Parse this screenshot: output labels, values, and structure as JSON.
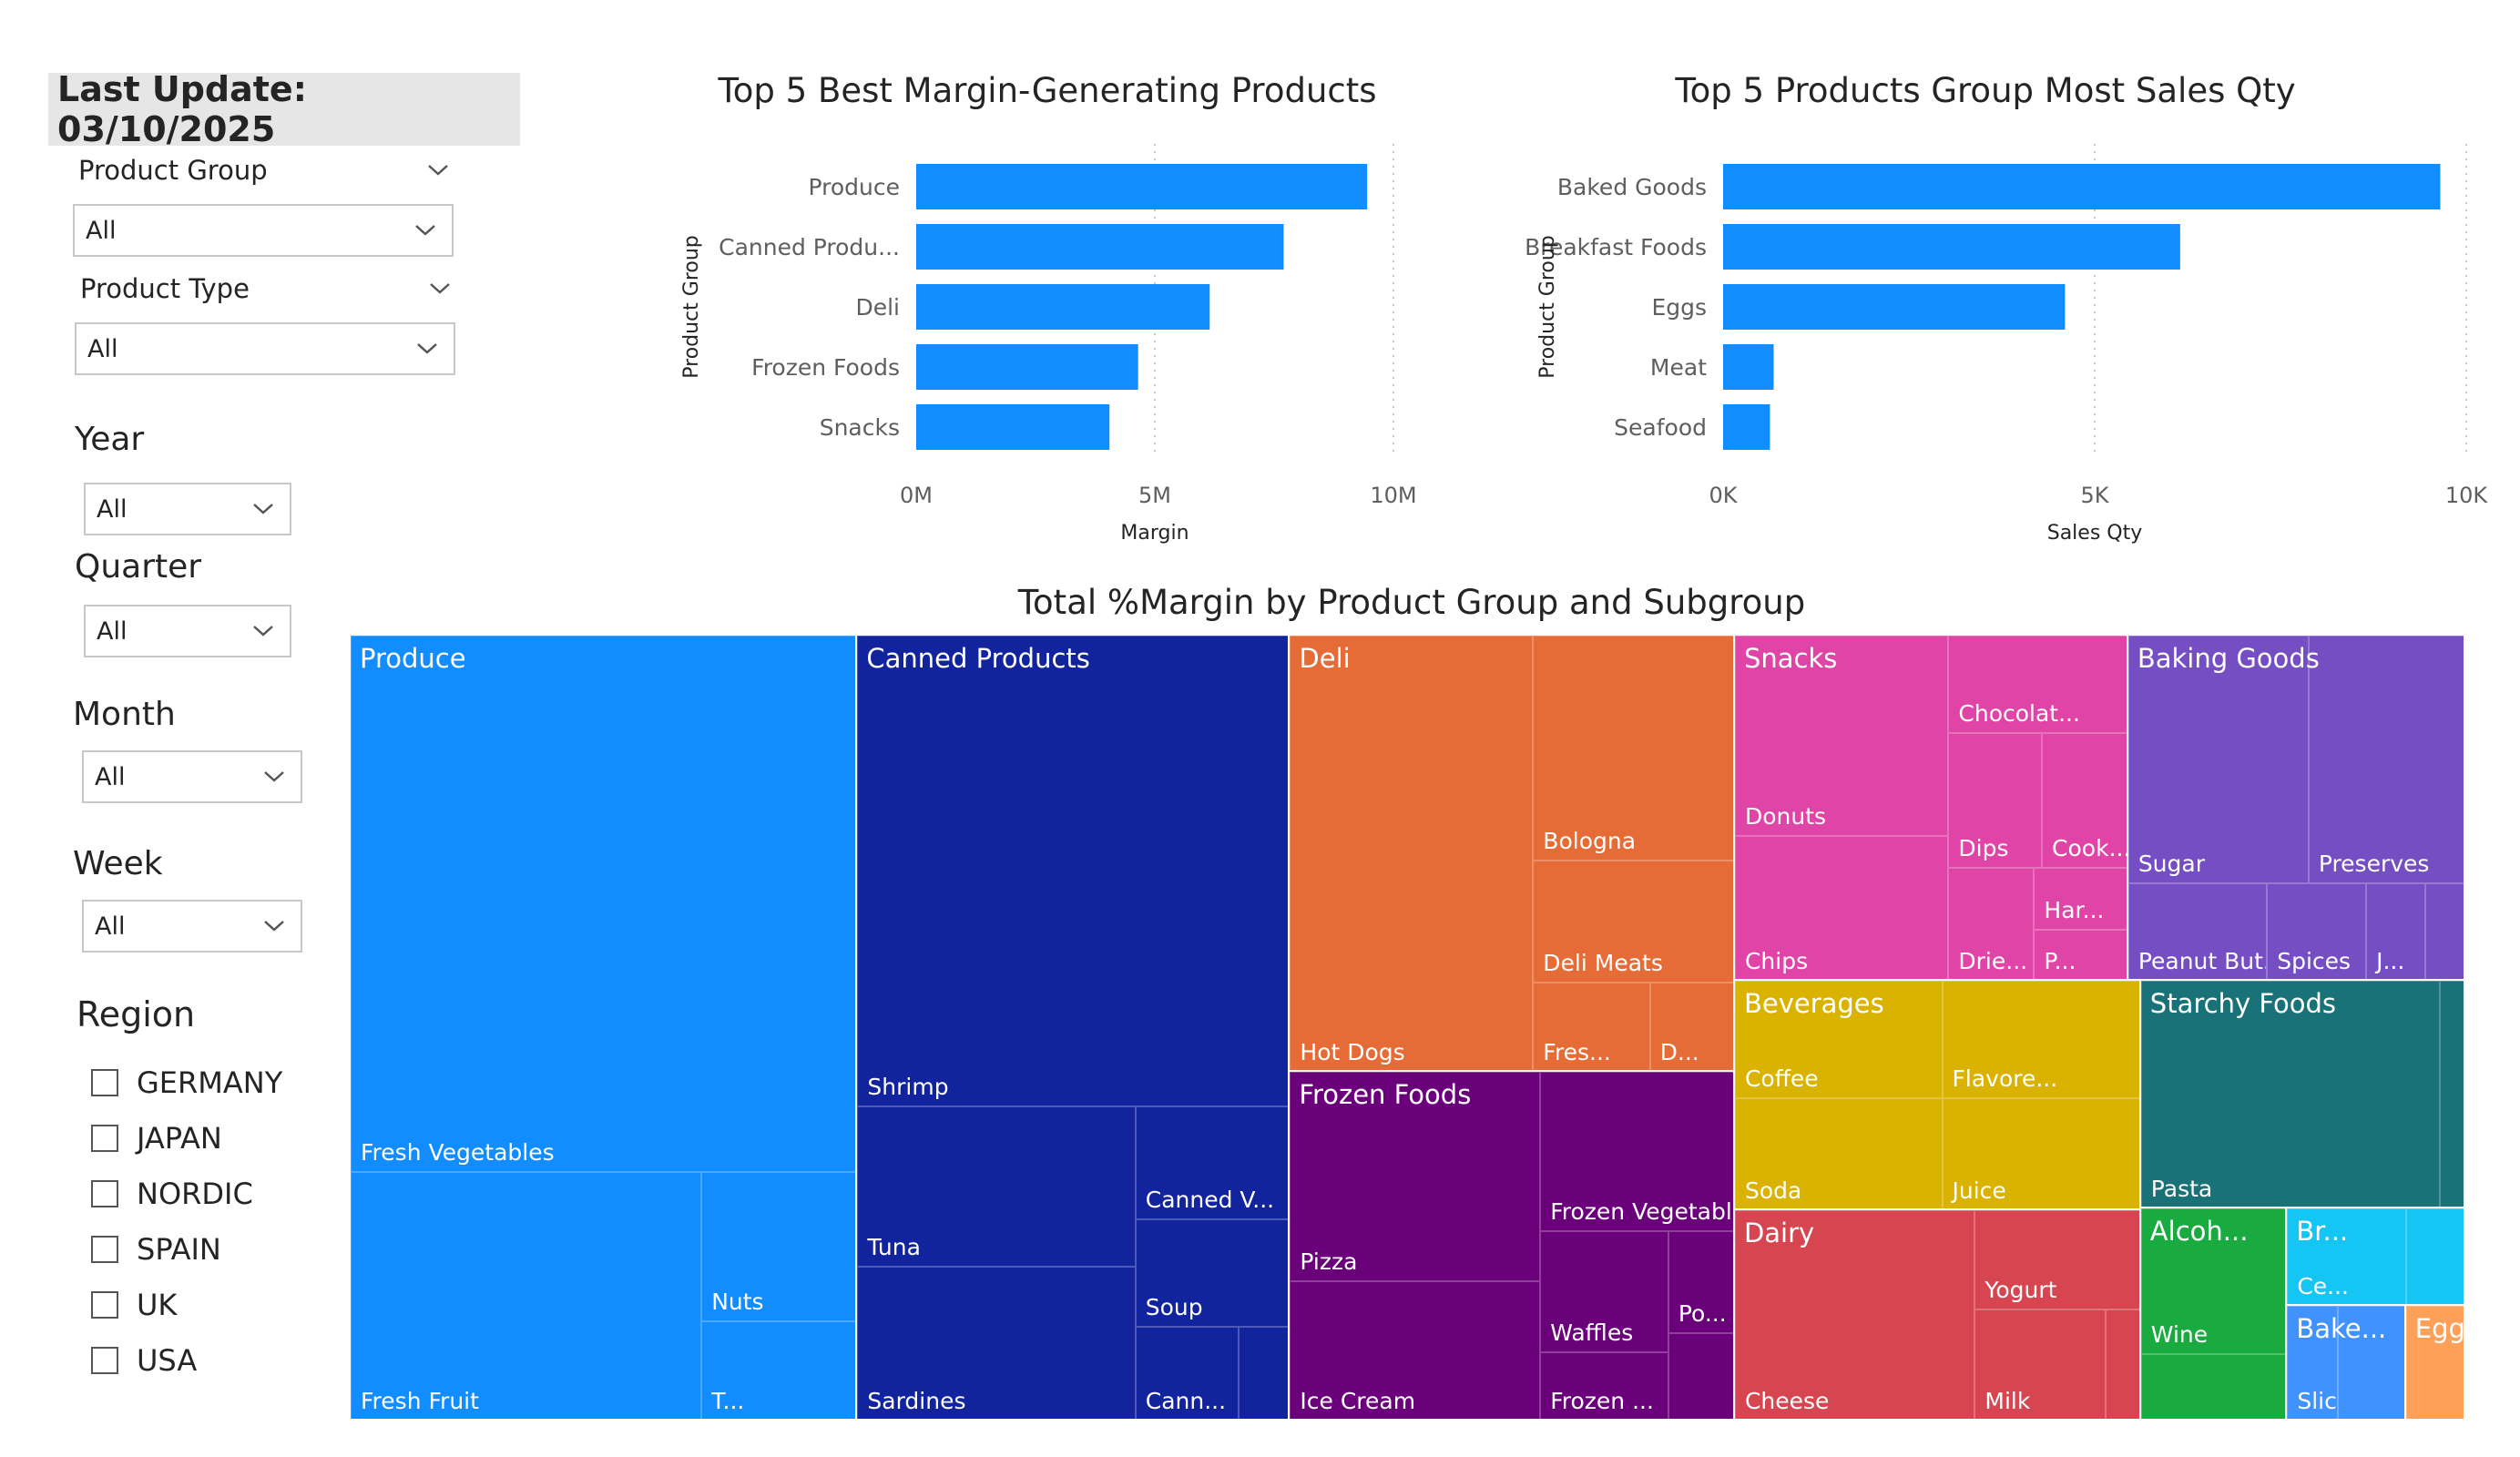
{
  "sidebar": {
    "last_update": "Last Update: 03/10/2025",
    "product_group": {
      "label": "Product Group",
      "value": "All"
    },
    "product_type": {
      "label": "Product Type",
      "value": "All"
    },
    "year": {
      "label": "Year",
      "value": "All"
    },
    "quarter": {
      "label": "Quarter",
      "value": "All"
    },
    "month": {
      "label": "Month",
      "value": "All"
    },
    "week": {
      "label": "Week",
      "value": "All"
    },
    "region": {
      "label": "Region",
      "options": [
        "GERMANY",
        "JAPAN",
        "NORDIC",
        "SPAIN",
        "UK",
        "USA"
      ]
    }
  },
  "colors": {
    "bar": "#118dff",
    "background": "#ffffff",
    "slicer_header_bg": "#e6e6e6"
  },
  "chart_data": [
    {
      "type": "bar",
      "orientation": "horizontal",
      "title": "Top 5 Best Margin-Generating Products",
      "categories": [
        "Produce",
        "Canned Produ...",
        "Deli",
        "Frozen Foods",
        "Snacks"
      ],
      "values": [
        9450000,
        7700000,
        6150000,
        4650000,
        4050000
      ],
      "xlabel": "Margin",
      "ylabel": "Product Group",
      "xlim": [
        0,
        10000000
      ],
      "ticks": [
        0,
        5000000,
        10000000
      ],
      "tick_labels": [
        "0M",
        "5M",
        "10M"
      ],
      "grid": true
    },
    {
      "type": "bar",
      "orientation": "horizontal",
      "title": "Top 5 Products Group Most Sales Qty",
      "categories": [
        "Baked Goods",
        "Breakfast Foods",
        "Eggs",
        "Meat",
        "Seafood"
      ],
      "values": [
        9650,
        6150,
        4600,
        680,
        630
      ],
      "xlabel": "Sales Qty",
      "ylabel": "Product Group",
      "xlim": [
        0,
        10000
      ],
      "ticks": [
        0,
        5000,
        10000
      ],
      "tick_labels": [
        "0K",
        "5K",
        "10K"
      ],
      "grid": true
    },
    {
      "type": "treemap",
      "title": "Total %Margin by Product Group and Subgroup",
      "groups": [
        {
          "name": "Produce",
          "color": "#118dff",
          "value": 20.5,
          "children": [
            {
              "name": "Fresh Vegetables",
              "value": 14.0
            },
            {
              "name": "Fresh Fruit",
              "value": 4.5
            },
            {
              "name": "Nuts",
              "value": 1.2
            },
            {
              "name": "T...",
              "value": 0.8
            }
          ]
        },
        {
          "name": "Canned Products",
          "color": "#12239e",
          "value": 17.5,
          "children": [
            {
              "name": "Shrimp",
              "value": 10.5
            },
            {
              "name": "Tuna",
              "value": 2.3
            },
            {
              "name": "Sardines",
              "value": 2.2
            },
            {
              "name": "Canned V...",
              "value": 0.9
            },
            {
              "name": "Soup",
              "value": 0.85
            },
            {
              "name": "Cann...",
              "value": 0.5
            }
          ]
        },
        {
          "name": "Deli",
          "color": "#e66c37",
          "value": 10.0,
          "children": [
            {
              "name": "Hot Dogs",
              "value": 5.6
            },
            {
              "name": "Bologna",
              "value": 2.4
            },
            {
              "name": "Deli Meats",
              "value": 1.3
            },
            {
              "name": "Fres...",
              "value": 0.55
            },
            {
              "name": "D...",
              "value": 0.4
            }
          ]
        },
        {
          "name": "Frozen Foods",
          "color": "#6b007b",
          "value": 8.0,
          "children": [
            {
              "name": "Pizza",
              "value": 2.7
            },
            {
              "name": "Ice Cream",
              "value": 1.8
            },
            {
              "name": "Frozen Vegetables",
              "value": 1.6
            },
            {
              "name": "Waffles",
              "value": 0.8
            },
            {
              "name": "Frozen ...",
              "value": 0.45
            },
            {
              "name": "Po...",
              "value": 0.35
            }
          ]
        },
        {
          "name": "Snacks",
          "color": "#e044a7",
          "value": 7.0,
          "children": [
            {
              "name": "Donuts",
              "value": 2.2
            },
            {
              "name": "Chips",
              "value": 1.6
            },
            {
              "name": "Chocolat...",
              "value": 0.9
            },
            {
              "name": "Dips",
              "value": 0.65
            },
            {
              "name": "Cook...",
              "value": 0.6
            },
            {
              "name": "Drie...",
              "value": 0.5
            },
            {
              "name": "Har...",
              "value": 0.3
            },
            {
              "name": "P...",
              "value": 0.25
            }
          ]
        },
        {
          "name": "Baking Goods",
          "color": "#744ec2",
          "value": 6.0,
          "children": [
            {
              "name": "Sugar",
              "value": 2.3
            },
            {
              "name": "Preserves",
              "value": 2.0
            },
            {
              "name": "Peanut But...",
              "value": 0.7
            },
            {
              "name": "Spices",
              "value": 0.5
            },
            {
              "name": "J...",
              "value": 0.3
            }
          ]
        },
        {
          "name": "Beverages",
          "color": "#d9b300",
          "value": 4.8,
          "children": [
            {
              "name": "Coffee",
              "value": 1.25
            },
            {
              "name": "Soda",
              "value": 1.2
            },
            {
              "name": "Flavore...",
              "value": 1.2
            },
            {
              "name": "Juice",
              "value": 1.15
            }
          ]
        },
        {
          "name": "Dairy",
          "color": "#d64550",
          "value": 4.4,
          "children": [
            {
              "name": "Cheese",
              "value": 2.6
            },
            {
              "name": "Yogurt",
              "value": 0.85
            },
            {
              "name": "Milk",
              "value": 0.75
            }
          ]
        },
        {
          "name": "Starchy Foods",
          "color": "#197278",
          "value": 3.8,
          "children": [
            {
              "name": "Pasta",
              "value": 3.5
            }
          ]
        },
        {
          "name": "Alcoh...",
          "color": "#1aab40",
          "value": 1.6,
          "children": [
            {
              "name": "Wine",
              "value": 1.1
            }
          ]
        },
        {
          "name": "Br...",
          "color": "#15c6f4",
          "value": 0.9,
          "children": [
            {
              "name": "Ce...",
              "value": 0.6
            }
          ]
        },
        {
          "name": "Bake...",
          "color": "#4092ff",
          "value": 0.7,
          "children": [
            {
              "name": "Slice...",
              "value": 0.3
            }
          ]
        },
        {
          "name": "Eggs",
          "color": "#ffa058",
          "value": 0.35,
          "children": []
        }
      ]
    }
  ]
}
